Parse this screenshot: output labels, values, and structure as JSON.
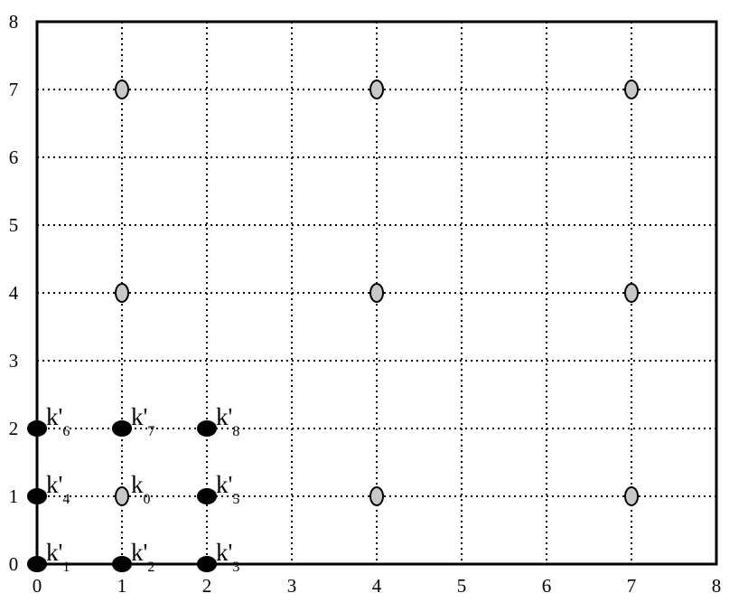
{
  "chart_data": {
    "type": "scatter",
    "title": "",
    "xlabel": "",
    "ylabel": "",
    "xlim": [
      0,
      8
    ],
    "ylim": [
      0,
      8
    ],
    "xticks": [
      "0",
      "1",
      "2",
      "3",
      "4",
      "5",
      "6",
      "7",
      "8"
    ],
    "yticks": [
      "0",
      "1",
      "2",
      "3",
      "4",
      "5",
      "6",
      "7",
      "8"
    ],
    "grid": "dotted",
    "series": [
      {
        "marker_color": "#000000",
        "points": [
          {
            "x": 0,
            "y": 0,
            "label": "k'",
            "sub": "1"
          },
          {
            "x": 1,
            "y": 0,
            "label": "k'",
            "sub": "2"
          },
          {
            "x": 2,
            "y": 0,
            "label": "k'",
            "sub": "3"
          },
          {
            "x": 0,
            "y": 1,
            "label": "k'",
            "sub": "4"
          },
          {
            "x": 2,
            "y": 1,
            "label": "k'",
            "sub": "5"
          },
          {
            "x": 0,
            "y": 2,
            "label": "k'",
            "sub": "6"
          },
          {
            "x": 1,
            "y": 2,
            "label": "k'",
            "sub": "7"
          },
          {
            "x": 2,
            "y": 2,
            "label": "k'",
            "sub": "8"
          }
        ]
      },
      {
        "marker_color": "#c8c8c8",
        "points": [
          {
            "x": 1,
            "y": 1,
            "label": "k",
            "sub": "0"
          },
          {
            "x": 4,
            "y": 1
          },
          {
            "x": 7,
            "y": 1
          },
          {
            "x": 1,
            "y": 4
          },
          {
            "x": 4,
            "y": 4
          },
          {
            "x": 7,
            "y": 4
          },
          {
            "x": 1,
            "y": 7
          },
          {
            "x": 4,
            "y": 7
          },
          {
            "x": 7,
            "y": 7
          }
        ]
      }
    ]
  }
}
